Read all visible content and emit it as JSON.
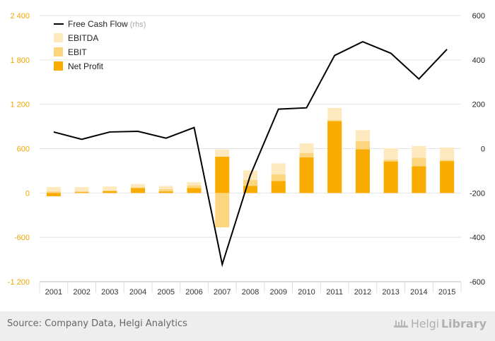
{
  "chart_data": {
    "type": "bar",
    "categories": [
      "2001",
      "2002",
      "2003",
      "2004",
      "2005",
      "2006",
      "2007",
      "2008",
      "2009",
      "2010",
      "2011",
      "2012",
      "2013",
      "2014",
      "2015"
    ],
    "series": [
      {
        "name": "EBITDA",
        "kind": "bar",
        "axis": "left",
        "color": "#fde9bd",
        "values": [
          80,
          80,
          88,
          122,
          95,
          145,
          590,
          305,
          400,
          670,
          1150,
          850,
          605,
          635,
          615
        ]
      },
      {
        "name": "EBIT",
        "kind": "bar",
        "axis": "left",
        "color": "#fcd67e",
        "values": [
          20,
          20,
          30,
          75,
          50,
          100,
          -465,
          175,
          250,
          540,
          985,
          700,
          450,
          475,
          445
        ]
      },
      {
        "name": "Net Profit",
        "kind": "bar",
        "axis": "left",
        "color": "#f9ab00",
        "values": [
          -45,
          10,
          25,
          65,
          20,
          65,
          490,
          95,
          160,
          480,
          970,
          590,
          425,
          360,
          430
        ]
      },
      {
        "name": "Free Cash Flow",
        "kind": "line",
        "axis": "right",
        "color": "#000000",
        "values": [
          75,
          42,
          75,
          78,
          47,
          95,
          -522,
          -120,
          178,
          184,
          420,
          482,
          430,
          314,
          448
        ]
      }
    ],
    "y_left": {
      "min": -1200,
      "max": 2400,
      "ticks": [
        2400,
        1800,
        1200,
        600,
        0,
        -600,
        -1200
      ],
      "tick_labels": [
        "2 400",
        "1 800",
        "1 200",
        "600",
        "0",
        "-600",
        "-1 200"
      ]
    },
    "y_right": {
      "min": -600,
      "max": 600,
      "ticks": [
        600,
        400,
        200,
        0,
        -200,
        -400,
        -600
      ],
      "tick_labels": [
        "600",
        "400",
        "200",
        "0",
        "-200",
        "-400",
        "-600"
      ]
    },
    "legend": {
      "placement": "top-left",
      "items": [
        {
          "label": "Free Cash Flow",
          "suffix": "(rhs)",
          "symbol": "line",
          "color": "#000000"
        },
        {
          "label": "EBITDA",
          "suffix": "",
          "symbol": "box",
          "color": "#fde9bd"
        },
        {
          "label": "EBIT",
          "suffix": "",
          "symbol": "box",
          "color": "#fcd67e"
        },
        {
          "label": "Net Profit",
          "suffix": "",
          "symbol": "box",
          "color": "#f9ab00"
        }
      ]
    },
    "colors": {
      "left_axis": "#f0a500",
      "right_axis": "#222222",
      "grid": "#e3e3e3"
    }
  },
  "footer": {
    "source": "Source: Company Data, Helgi Analytics",
    "brand_name_1": "Helgi",
    "brand_name_2": "Library"
  }
}
